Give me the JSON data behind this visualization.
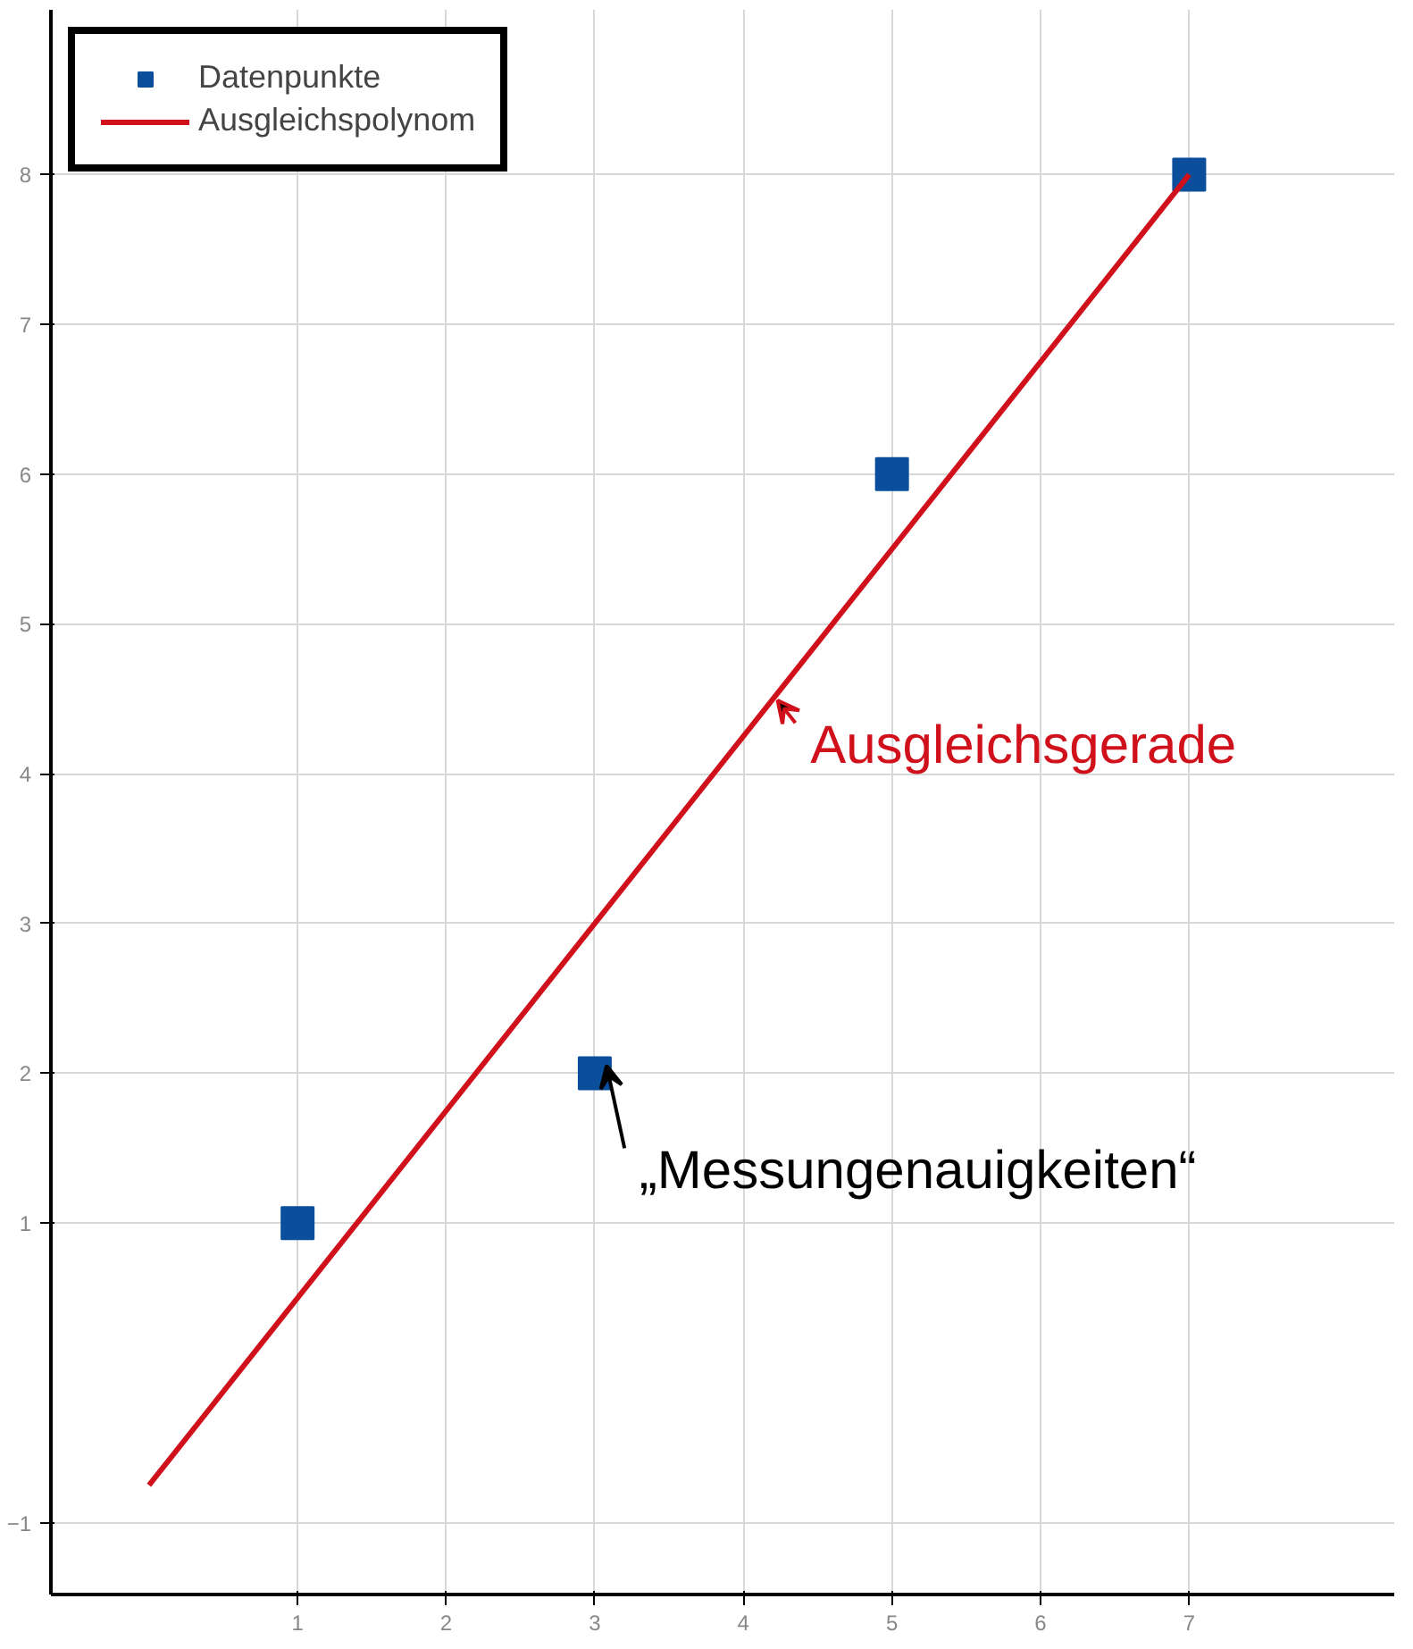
{
  "chart_data": {
    "type": "scatter",
    "series": [
      {
        "name": "Datenpunkte",
        "color": "#0b4f9c",
        "x": [
          1,
          3,
          5,
          7
        ],
        "values": [
          1,
          2,
          6,
          8
        ],
        "marker": "square"
      },
      {
        "name": "Ausgleichspolynom",
        "type": "line",
        "color": "#d0101a",
        "x": [
          0,
          7
        ],
        "values": [
          -0.75,
          8
        ],
        "line_style": "solid"
      }
    ],
    "xlim": [
      -0.66,
      8.38
    ],
    "ylim": [
      -1.48,
      9.1
    ],
    "xticks": [
      1,
      2,
      3,
      4,
      5,
      6,
      7
    ],
    "yticks": [
      -1,
      1,
      2,
      3,
      4,
      5,
      6,
      7,
      8
    ],
    "annotations": [
      {
        "text": "Ausgleichsgerade",
        "x": 4.15,
        "y": 4.44
      },
      {
        "text": "„Messungenauigkeiten“",
        "x": 3,
        "y": 2
      }
    ],
    "grid": true,
    "legend": "top left"
  }
}
